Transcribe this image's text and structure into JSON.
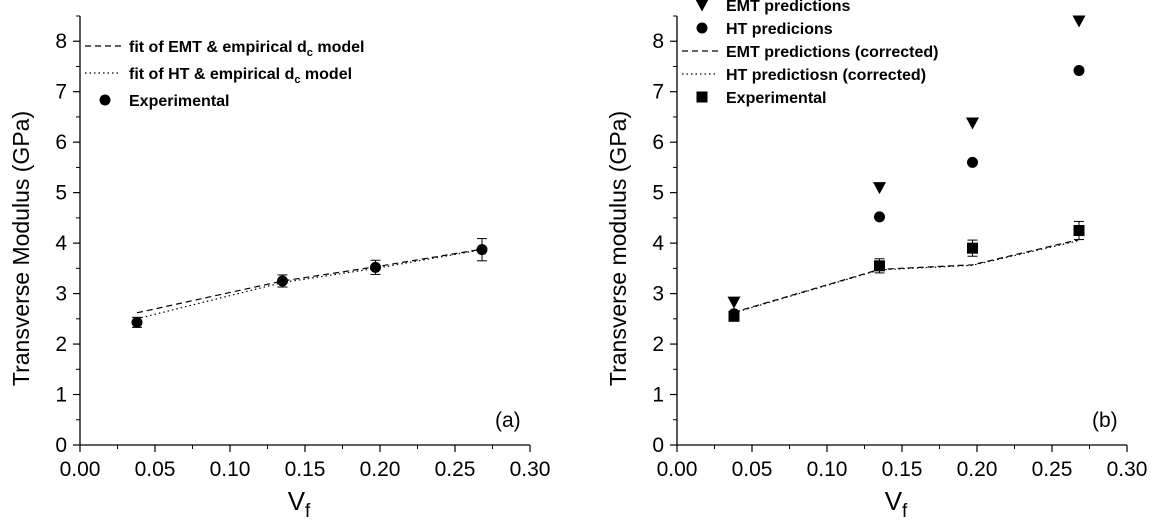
{
  "chart_data": [
    {
      "type": "scatter",
      "panel_label": "(a)",
      "xlabel": {
        "main": "V",
        "sub": "f"
      },
      "ylabel": "Transverse Modulus (GPa)",
      "xlim": [
        0.0,
        0.3
      ],
      "ylim": [
        0,
        8.5
      ],
      "xticks": [
        "0.00",
        "0.05",
        "0.10",
        "0.15",
        "0.20",
        "0.25",
        "0.30"
      ],
      "yticks": [
        "0",
        "1",
        "2",
        "3",
        "4",
        "5",
        "6",
        "7",
        "8"
      ],
      "legend_position": "top-left",
      "series": [
        {
          "name": "fit of EMT & empirical d_c model",
          "name_parts": {
            "main": "fit of EMT & empirical d",
            "sub": "c",
            "tail": " model"
          },
          "style": "dashed",
          "x": [
            0.038,
            0.135,
            0.197,
            0.268
          ],
          "y": [
            2.62,
            3.25,
            3.53,
            3.88
          ]
        },
        {
          "name": "fit of HT & empirical d_c model",
          "name_parts": {
            "main": "fit of HT & empirical d",
            "sub": "c",
            "tail": " model"
          },
          "style": "dotted",
          "x": [
            0.038,
            0.135,
            0.197,
            0.268
          ],
          "y": [
            2.5,
            3.22,
            3.5,
            3.87
          ]
        },
        {
          "name": "Experimental",
          "name_parts": {
            "main": "Experimental",
            "sub": "",
            "tail": ""
          },
          "marker": "circle",
          "x": [
            0.038,
            0.135,
            0.197,
            0.268
          ],
          "y": [
            2.43,
            3.25,
            3.52,
            3.87
          ],
          "error": [
            0.1,
            0.12,
            0.14,
            0.22
          ]
        }
      ]
    },
    {
      "type": "scatter",
      "panel_label": "(b)",
      "xlabel": {
        "main": "V",
        "sub": "f"
      },
      "ylabel": "Transverse modulus (GPa)",
      "xlim": [
        0.0,
        0.3
      ],
      "ylim": [
        0,
        8.5
      ],
      "xticks": [
        "0.00",
        "0.05",
        "0.10",
        "0.15",
        "0.20",
        "0.25",
        "0.30"
      ],
      "yticks": [
        "0",
        "1",
        "2",
        "3",
        "4",
        "5",
        "6",
        "7",
        "8"
      ],
      "legend_position": "top-left",
      "series": [
        {
          "name": "EMT predictions",
          "marker": "triangle-down",
          "x": [
            0.038,
            0.135,
            0.197,
            0.268
          ],
          "y": [
            2.83,
            5.1,
            6.38,
            8.4
          ]
        },
        {
          "name": "HT predicions",
          "marker": "circle",
          "x": [
            0.038,
            0.135,
            0.197,
            0.268
          ],
          "y": [
            2.6,
            4.52,
            5.6,
            7.42
          ]
        },
        {
          "name": "EMT predictions (corrected)",
          "style": "dashed",
          "x": [
            0.038,
            0.135,
            0.197,
            0.268
          ],
          "y": [
            2.63,
            3.48,
            3.57,
            4.07
          ]
        },
        {
          "name": "HT predictiosn (corrected)",
          "style": "dotted",
          "x": [
            0.038,
            0.135,
            0.197,
            0.268
          ],
          "y": [
            2.62,
            3.47,
            3.56,
            4.05
          ]
        },
        {
          "name": "Experimental",
          "marker": "square",
          "x": [
            0.038,
            0.135,
            0.197,
            0.268
          ],
          "y": [
            2.55,
            3.55,
            3.9,
            4.25
          ],
          "error": [
            0.08,
            0.14,
            0.16,
            0.18
          ]
        }
      ]
    }
  ]
}
